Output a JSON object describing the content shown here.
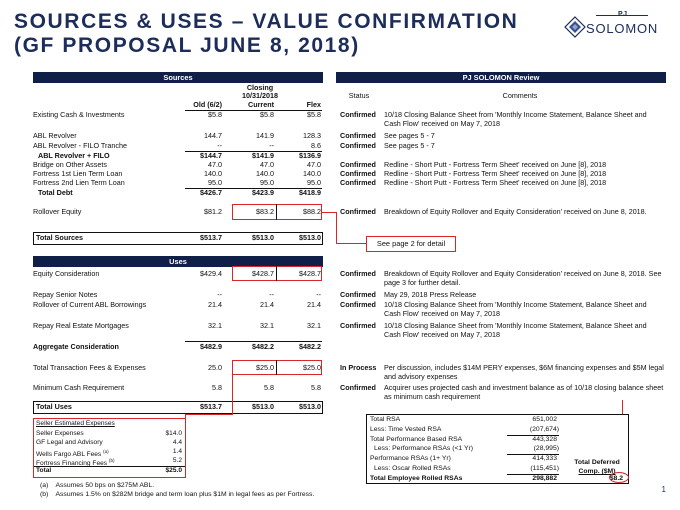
{
  "title_line1": "SOURCES & USES – VALUE CONFIRMATION",
  "title_line2": "(GF PROPOSAL JUNE 8, 2018)",
  "logo": {
    "pj": "PJ",
    "name": "SOLOMON",
    "mark_color": "#1c2d5c",
    "icon": "solomon-diamond-logo"
  },
  "colors": {
    "header_bar": "#0f1f47",
    "title": "#1c2d5c",
    "highlight": "#d9262b"
  },
  "sources": {
    "header": "Sources",
    "col_closing_l1": "Closing",
    "col_closing_l2": "10/31/2018",
    "col_old": "Old (6/2)",
    "col_current": "Current",
    "col_flex": "Flex",
    "rows": [
      {
        "label": "Existing Cash & Investments",
        "old": "$5.8",
        "cur": "$5.8",
        "flex": "$5.8"
      },
      {
        "label": "ABL Revolver",
        "old": "144.7",
        "cur": "141.9",
        "flex": "128.3"
      },
      {
        "label": "ABL Revolver - FILO Tranche",
        "old": "--",
        "cur": "--",
        "flex": "8.6"
      },
      {
        "label": "ABL Revolver + FILO",
        "old": "$144.7",
        "cur": "$141.9",
        "flex": "$136.9"
      },
      {
        "label": "Bridge on Other Assets",
        "old": "47.0",
        "cur": "47.0",
        "flex": "47.0"
      },
      {
        "label": "Fortress 1st Lien Term Loan",
        "old": "140.0",
        "cur": "140.0",
        "flex": "140.0"
      },
      {
        "label": "Fortress 2nd Lien Term Loan",
        "old": "95.0",
        "cur": "95.0",
        "flex": "95.0"
      },
      {
        "label": "Total Debt",
        "old": "$426.7",
        "cur": "$423.9",
        "flex": "$418.9"
      },
      {
        "label": "Rollover Equity",
        "old": "$81.2",
        "cur": "$83.2",
        "flex": "$88.2"
      },
      {
        "label": "Total Sources",
        "old": "$513.7",
        "cur": "$513.0",
        "flex": "$513.0"
      }
    ]
  },
  "review": {
    "header": "PJ SOLOMON Review",
    "col_status": "Status",
    "col_comments": "Comments",
    "rows": [
      {
        "status": "Confirmed",
        "comment": "10/18 Closing Balance Sheet from 'Monthly Income Statement, Balance Sheet and Cash Flow' received on May 7, 2018"
      },
      {
        "status": "Confirmed",
        "comment": "See pages 5 - 7"
      },
      {
        "status": "Confirmed",
        "comment": "See pages 5 - 7"
      },
      {
        "status": "Confirmed",
        "comment": "Redline - Short Putt - Fortress Term Sheet' received on June [8], 2018"
      },
      {
        "status": "Confirmed",
        "comment": "Redline - Short Putt - Fortress Term Sheet' received on June [8], 2018"
      },
      {
        "status": "Confirmed",
        "comment": "Redline - Short Putt - Fortress Term Sheet' received on June [8], 2018"
      },
      {
        "status": "Confirmed",
        "comment": "Breakdown of Equity Rollover and Equity Consideration' received on June 8, 2018."
      }
    ],
    "callout": "See page 2 for detail"
  },
  "uses": {
    "header": "Uses",
    "rows": [
      {
        "label": "Equity Consideration",
        "old": "$429.4",
        "cur": "$428.7",
        "flex": "$428.7",
        "status": "Confirmed",
        "comment": "Breakdown of Equity Rollover and Equity Consideration' received on June 8, 2018. See page 3 for further detail."
      },
      {
        "label": "Repay Senior Notes",
        "old": "--",
        "cur": "--",
        "flex": "--",
        "status": "Confirmed",
        "comment": "May 29, 2018 Press Release"
      },
      {
        "label": "Rollover of Current ABL Borrowings",
        "old": "21.4",
        "cur": "21.4",
        "flex": "21.4",
        "status": "Confirmed",
        "comment": "10/18 Closing Balance Sheet from 'Monthly Income Statement, Balance Sheet and Cash Flow' received on May 7, 2018"
      },
      {
        "label": "Repay Real Estate Mortgages",
        "old": "32.1",
        "cur": "32.1",
        "flex": "32.1",
        "status": "Confirmed",
        "comment": "10/18 Closing Balance Sheet from 'Monthly Income Statement, Balance Sheet and Cash Flow' received on May 7, 2018"
      },
      {
        "label": "Aggregate Consideration",
        "old": "$482.9",
        "cur": "$482.2",
        "flex": "$482.2"
      },
      {
        "label": "Total Transaction Fees & Expenses",
        "old": "25.0",
        "cur": "$25.0",
        "flex": "$25.0",
        "status": "In Process",
        "comment": "Per discussion, includes $14M PERY expenses, $6M financing expenses and $5M legal and advisory expenses"
      },
      {
        "label": "Minimum Cash Requirement",
        "old": "5.8",
        "cur": "5.8",
        "flex": "5.8",
        "status": "Confirmed",
        "comment": "Acquirer uses projected cash and investment balance as of 10/18 closing balance sheet as minimum cash requirement"
      },
      {
        "label": "Total Uses",
        "old": "$513.7",
        "cur": "$513.0",
        "flex": "$513.0"
      }
    ]
  },
  "seller_expenses": {
    "title": "Seller Estimated Expenses",
    "rows": [
      {
        "label": "Seller Expenses",
        "sup": "",
        "val": "$14.0"
      },
      {
        "label": "GF Legal and Advisory",
        "sup": "",
        "val": "4.4"
      },
      {
        "label": "Wells Fargo ABL Fees",
        "sup": "(a)",
        "val": "1.4"
      },
      {
        "label": "Fortress Financing Fees",
        "sup": "(b)",
        "val": "5.2"
      },
      {
        "label": "Total",
        "sup": "",
        "val": "$25.0"
      }
    ]
  },
  "rsa": {
    "rows": [
      {
        "label": "Total RSA",
        "val": "651,002"
      },
      {
        "label": "Less: Time Vested RSA",
        "val": "(207,674)"
      },
      {
        "label": "Total Performance Based RSA",
        "val": "443,328"
      },
      {
        "label": "Less: Performance RSAs (<1 Yr)",
        "val": "(28,995)"
      },
      {
        "label": "Performance RSAs (1+ Yr)",
        "val": "414,333"
      },
      {
        "label": "Less: Oscar Rolled RSAs",
        "val": "(115,451)"
      },
      {
        "label": "Total Employee Rolled RSAs",
        "val": "298,882"
      }
    ],
    "deferred_l1": "Total Deferred",
    "deferred_l2": "Comp. ($M)",
    "deferred_val": "$8.2"
  },
  "footnotes": [
    {
      "mark": "(a)",
      "text": "Assumes 50 bps on $275M ABL."
    },
    {
      "mark": "(b)",
      "text": "Assumes 1.5% on $282M bridge and term loan plus $1M in legal fees as per Fortress."
    }
  ],
  "page_number": "1"
}
